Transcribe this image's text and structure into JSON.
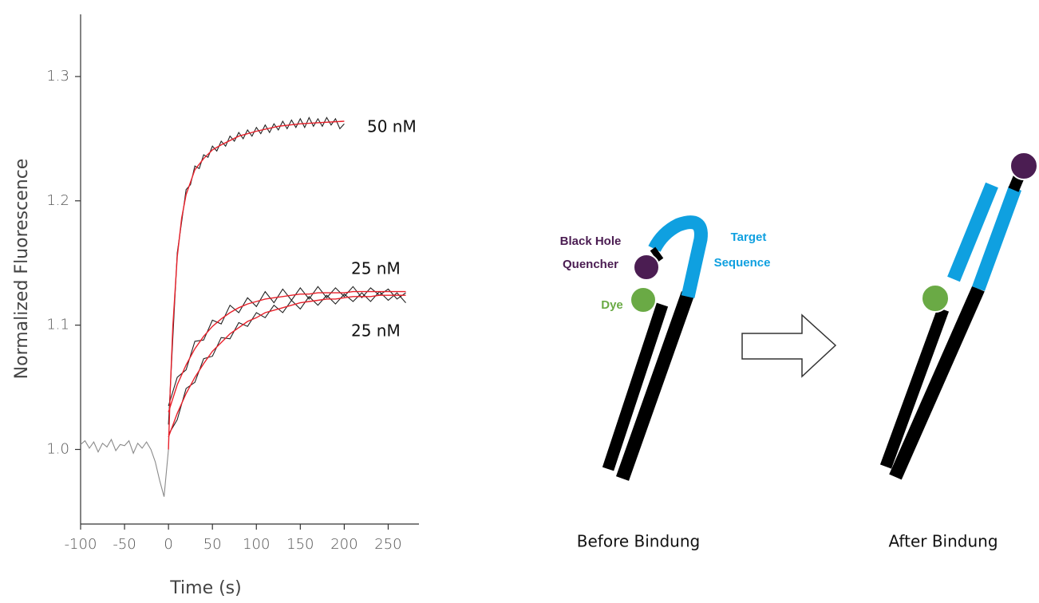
{
  "chart_data": {
    "type": "line",
    "xlabel": "Time (s)",
    "ylabel": "Normalized Fluorescence",
    "xlim": [
      -100,
      285
    ],
    "ylim": [
      0.94,
      1.35
    ],
    "xticks": [
      -100,
      -50,
      0,
      50,
      100,
      150,
      200,
      250
    ],
    "yticks": [
      {
        "value": 1,
        "label": "1.0"
      },
      1.1,
      1.2,
      1.3
    ],
    "series": [
      {
        "color": "#8a8a8a",
        "x": [
          -100,
          -95,
          -90,
          -85,
          -80,
          -75,
          -70,
          -65,
          -60,
          -55,
          -50,
          -45,
          -40,
          -35,
          -30,
          -25,
          -20,
          -15,
          -10,
          -5,
          0
        ],
        "values": [
          1.004,
          1.007,
          1.001,
          1.006,
          0.998,
          1.005,
          1.002,
          1.008,
          0.999,
          1.004,
          1.003,
          1.007,
          0.997,
          1.005,
          1.001,
          1.006,
          1.0,
          0.99,
          0.975,
          0.962,
          1.0
        ]
      },
      {
        "name": "50 nM",
        "color": "#222222",
        "x": [
          0,
          5,
          10,
          15,
          20,
          25,
          30,
          35,
          40,
          45,
          50,
          55,
          60,
          65,
          70,
          75,
          80,
          85,
          90,
          95,
          100,
          105,
          110,
          115,
          120,
          125,
          130,
          135,
          140,
          145,
          150,
          155,
          160,
          165,
          170,
          175,
          180,
          185,
          190,
          195,
          200
        ],
        "values": [
          1.02,
          1.09,
          1.158,
          1.183,
          1.209,
          1.213,
          1.228,
          1.226,
          1.237,
          1.235,
          1.244,
          1.24,
          1.248,
          1.244,
          1.252,
          1.248,
          1.255,
          1.25,
          1.257,
          1.252,
          1.259,
          1.254,
          1.261,
          1.255,
          1.262,
          1.257,
          1.264,
          1.258,
          1.265,
          1.259,
          1.266,
          1.259,
          1.267,
          1.26,
          1.266,
          1.26,
          1.267,
          1.261,
          1.266,
          1.258,
          1.262
        ]
      },
      {
        "name": "25 nM",
        "color": "#222222",
        "x": [
          0,
          10,
          20,
          30,
          40,
          50,
          60,
          70,
          80,
          90,
          100,
          110,
          120,
          130,
          140,
          150,
          160,
          170,
          180,
          190,
          200,
          210,
          220,
          230,
          240,
          250,
          260,
          270
        ],
        "values": [
          1.035,
          1.058,
          1.064,
          1.087,
          1.088,
          1.104,
          1.101,
          1.116,
          1.11,
          1.122,
          1.115,
          1.127,
          1.118,
          1.129,
          1.12,
          1.13,
          1.121,
          1.131,
          1.122,
          1.13,
          1.123,
          1.131,
          1.122,
          1.13,
          1.124,
          1.129,
          1.121,
          1.126
        ]
      },
      {
        "name": "25 nM",
        "color": "#222222",
        "x": [
          0,
          10,
          20,
          30,
          40,
          50,
          60,
          70,
          80,
          90,
          100,
          110,
          120,
          130,
          140,
          150,
          160,
          170,
          180,
          190,
          200,
          210,
          220,
          230,
          240,
          250,
          260,
          270
        ],
        "values": [
          1.012,
          1.024,
          1.049,
          1.054,
          1.073,
          1.075,
          1.09,
          1.089,
          1.102,
          1.099,
          1.11,
          1.106,
          1.116,
          1.11,
          1.12,
          1.113,
          1.123,
          1.116,
          1.124,
          1.117,
          1.125,
          1.119,
          1.126,
          1.119,
          1.127,
          1.12,
          1.126,
          1.118
        ]
      },
      {
        "color": "#e8202a",
        "x": [
          0,
          2,
          5,
          10,
          15,
          20,
          30,
          40,
          50,
          60,
          80,
          100,
          125,
          150,
          175,
          200
        ],
        "values": [
          1.0,
          1.047,
          1.099,
          1.155,
          1.186,
          1.205,
          1.225,
          1.234,
          1.241,
          1.245,
          1.252,
          1.256,
          1.26,
          1.262,
          1.263,
          1.264
        ]
      },
      {
        "color": "#e8202a",
        "x": [
          0,
          10,
          20,
          30,
          40,
          50,
          60,
          70,
          80,
          90,
          100,
          110,
          120,
          130,
          140,
          150,
          160,
          170,
          180,
          190,
          200,
          210,
          220,
          230,
          240,
          250,
          260,
          270
        ],
        "values": [
          1.03,
          1.052,
          1.068,
          1.081,
          1.091,
          1.099,
          1.105,
          1.11,
          1.114,
          1.117,
          1.119,
          1.121,
          1.122,
          1.123,
          1.124,
          1.125,
          1.125,
          1.126,
          1.126,
          1.126,
          1.126,
          1.127,
          1.127,
          1.127,
          1.127,
          1.127,
          1.127,
          1.127
        ]
      },
      {
        "color": "#e8202a",
        "x": [
          0,
          10,
          20,
          30,
          40,
          50,
          60,
          70,
          80,
          90,
          100,
          110,
          120,
          130,
          140,
          150,
          160,
          170,
          180,
          190,
          200,
          210,
          220,
          230,
          240,
          250,
          260,
          270
        ],
        "values": [
          1.01,
          1.029,
          1.045,
          1.058,
          1.069,
          1.079,
          1.086,
          1.093,
          1.098,
          1.103,
          1.106,
          1.11,
          1.112,
          1.114,
          1.116,
          1.118,
          1.119,
          1.12,
          1.121,
          1.121,
          1.122,
          1.123,
          1.123,
          1.123,
          1.124,
          1.124,
          1.124,
          1.124
        ]
      }
    ]
  },
  "diagram": {
    "quencher": [
      "Black Hole",
      "Quencher"
    ],
    "target": [
      "Target",
      "Sequence"
    ],
    "dye": "Dye",
    "before": "Before Bindung",
    "after": "After Bindung"
  }
}
